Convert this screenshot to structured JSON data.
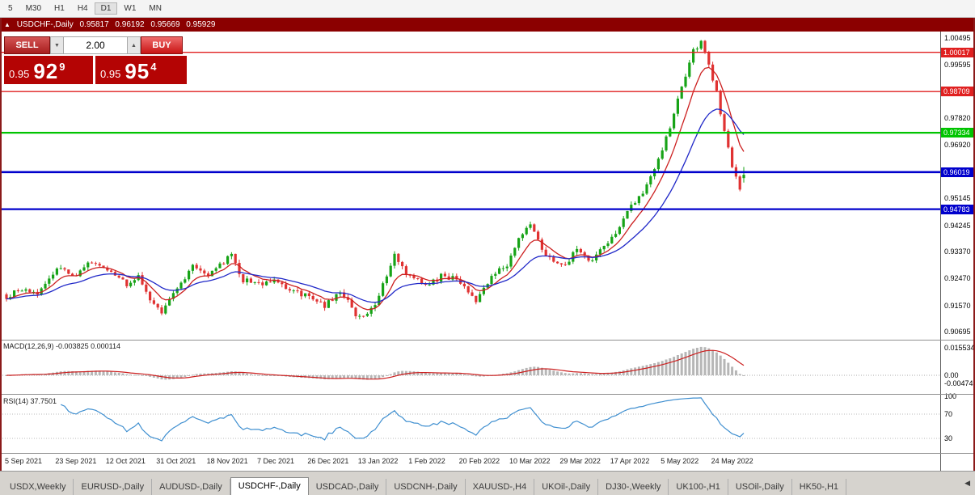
{
  "toolbar": {
    "timeframes": [
      "5",
      "M30",
      "H1",
      "H4",
      "D1",
      "W1",
      "MN"
    ],
    "active_timeframe": "D1"
  },
  "chart_header": {
    "collapse_icon": "▲",
    "symbol": "USDCHF-,Daily",
    "open": "0.95817",
    "high": "0.96192",
    "low": "0.95669",
    "close": "0.95929"
  },
  "trade_panel": {
    "sell_label": "SELL",
    "buy_label": "BUY",
    "volume": "2.00",
    "stepper_down": "▼",
    "stepper_up": "▲",
    "bid_prefix": "0.95",
    "bid_big": "92",
    "bid_sup": "9",
    "ask_prefix": "0.95",
    "ask_big": "95",
    "ask_sup": "4"
  },
  "price_axis": {
    "ticks": [
      {
        "label": "1.00495",
        "value": 1.00495
      },
      {
        "label": "0.99595",
        "value": 0.99595
      },
      {
        "label": "0.97820",
        "value": 0.9782
      },
      {
        "label": "0.96920",
        "value": 0.9692
      },
      {
        "label": "0.95145",
        "value": 0.95145
      },
      {
        "label": "0.94245",
        "value": 0.94245
      },
      {
        "label": "0.93370",
        "value": 0.9337
      },
      {
        "label": "0.92470",
        "value": 0.9247
      },
      {
        "label": "0.91570",
        "value": 0.9157
      },
      {
        "label": "0.90695",
        "value": 0.90695
      }
    ],
    "badges": [
      {
        "label": "1.00017",
        "value": 1.00017,
        "color": "#e02020",
        "w": 1.4
      },
      {
        "label": "0.98709",
        "value": 0.98709,
        "color": "#e02020",
        "w": 1.4
      },
      {
        "label": "0.97334",
        "value": 0.97334,
        "color": "#00c400",
        "w": 2.2
      },
      {
        "label": "0.96019",
        "value": 0.96019,
        "color": "#0000cc",
        "w": 2.6
      },
      {
        "label": "0.94783",
        "value": 0.94783,
        "color": "#0000cc",
        "w": 2.2
      }
    ]
  },
  "macd_panel": {
    "label_name": "MACD(12,26,9)",
    "label_values": "-0.003825 0.000114",
    "ticks": [
      {
        "label": "0.015534",
        "value": 0.015534
      },
      {
        "label": "0.00",
        "value": 0
      },
      {
        "label": "-0.00474",
        "value": -0.00474
      }
    ]
  },
  "rsi_panel": {
    "label": "RSI(14) 37.7501",
    "ticks": [
      {
        "label": "100",
        "value": 100
      },
      {
        "label": "70",
        "value": 70
      },
      {
        "label": "30",
        "value": 30
      }
    ],
    "levels": [
      70,
      30
    ]
  },
  "dates": [
    "5 Sep 2021",
    "23 Sep 2021",
    "12 Oct 2021",
    "31 Oct 2021",
    "18 Nov 2021",
    "7 Dec 2021",
    "26 Dec 2021",
    "13 Jan 2022",
    "1 Feb 2022",
    "20 Feb 2022",
    "10 Mar 2022",
    "29 Mar 2022",
    "17 Apr 2022",
    "5 May 2022",
    "24 May 2022"
  ],
  "tabs": {
    "items": [
      "USDX,Weekly",
      "EURUSD-,Daily",
      "AUDUSD-,Daily",
      "USDCHF-,Daily",
      "USDCAD-,Daily",
      "USDCNH-,Daily",
      "XAUUSD-,H4",
      "UKOil-,Daily",
      "DJ30-,Weekly",
      "UK100-,H1",
      "USOil-,Daily",
      "HK50-,H1"
    ],
    "active": "USDCHF-,Daily",
    "scroll_icon": "◀"
  },
  "colors": {
    "candle_up": "#17a317",
    "candle_down": "#e03232",
    "macd_hist": "#b6b6b6",
    "macd_signal": "#cc2020",
    "rsi_line": "#3f8fd0",
    "header_bg": "#8b0000",
    "price_box_red": "#b40404",
    "hline_red": "#e02020",
    "hline_green": "#00c400",
    "hline_blue": "#0000cc"
  },
  "chart_data": {
    "type": "candlestick",
    "symbol": "USDCHF-",
    "timeframe": "Daily",
    "bar_count": 191,
    "price_waypoints": [
      [
        0,
        0.9185
      ],
      [
        4,
        0.9215
      ],
      [
        8,
        0.9195
      ],
      [
        13,
        0.9285
      ],
      [
        17,
        0.9255
      ],
      [
        22,
        0.93
      ],
      [
        26,
        0.928
      ],
      [
        31,
        0.923
      ],
      [
        34,
        0.9255
      ],
      [
        37,
        0.918
      ],
      [
        40,
        0.9135
      ],
      [
        44,
        0.9215
      ],
      [
        48,
        0.9285
      ],
      [
        52,
        0.926
      ],
      [
        56,
        0.93
      ],
      [
        58,
        0.933
      ],
      [
        61,
        0.9245
      ],
      [
        65,
        0.9225
      ],
      [
        69,
        0.9245
      ],
      [
        73,
        0.9205
      ],
      [
        78,
        0.919
      ],
      [
        82,
        0.915
      ],
      [
        86,
        0.9205
      ],
      [
        91,
        0.9115
      ],
      [
        95,
        0.9165
      ],
      [
        100,
        0.932
      ],
      [
        104,
        0.9255
      ],
      [
        108,
        0.922
      ],
      [
        112,
        0.9255
      ],
      [
        117,
        0.9235
      ],
      [
        121,
        0.917
      ],
      [
        125,
        0.9255
      ],
      [
        129,
        0.929
      ],
      [
        132,
        0.938
      ],
      [
        135,
        0.9425
      ],
      [
        138,
        0.934
      ],
      [
        141,
        0.93
      ],
      [
        144,
        0.929
      ],
      [
        147,
        0.934
      ],
      [
        150,
        0.931
      ],
      [
        153,
        0.9335
      ],
      [
        156,
        0.9385
      ],
      [
        159,
        0.9445
      ],
      [
        162,
        0.9505
      ],
      [
        165,
        0.956
      ],
      [
        168,
        0.964
      ],
      [
        171,
        0.975
      ],
      [
        173,
        0.985
      ],
      [
        175,
        0.9925
      ],
      [
        177,
        1.0005
      ],
      [
        179,
        1.004
      ],
      [
        181,
        0.995
      ],
      [
        183,
        0.9865
      ],
      [
        185,
        0.9735
      ],
      [
        187,
        0.962
      ],
      [
        189,
        0.9545
      ],
      [
        190,
        0.9593
      ]
    ],
    "last_bar": {
      "open": 0.95817,
      "high": 0.96192,
      "low": 0.95669,
      "close": 0.95929
    },
    "ma": [
      {
        "period": 8,
        "color": "#cc2020"
      },
      {
        "period": 21,
        "color": "#2028c8"
      }
    ],
    "indicators": [
      {
        "name": "MACD",
        "params": [
          12,
          26,
          9
        ]
      },
      {
        "name": "RSI",
        "params": [
          14
        ]
      }
    ],
    "noise_seed": 11,
    "noise_amp": 0.0013
  }
}
